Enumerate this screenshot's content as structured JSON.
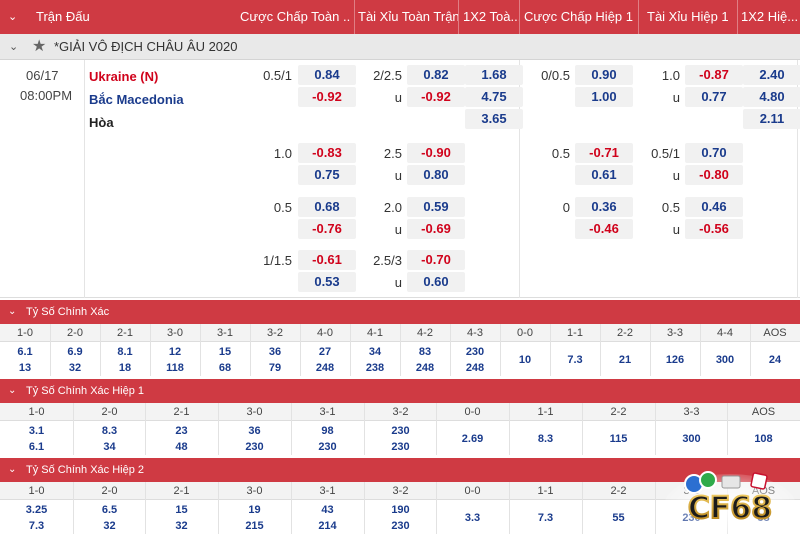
{
  "header": {
    "chevron": "⌄",
    "columns": [
      "Trận Đấu",
      "Cược Chấp Toàn ...",
      "Tài Xỉu Toàn Trận",
      "1X2 Toà...",
      "Cược Chấp Hiệp 1",
      "Tài Xỉu Hiệp 1",
      "1X2 Hiệ..."
    ]
  },
  "league": {
    "chevron": "⌄",
    "title": "*GIẢI VÔ ĐỊCH CHÂU ÂU 2020"
  },
  "match": {
    "date": "06/17",
    "time": "08:00PM",
    "home": "Ukraine (N)",
    "away": "Bắc Macedonia",
    "draw": "Hòa",
    "blocks": [
      {
        "hdp_line": "0.5/1",
        "hdp": [
          "0.84",
          "-0.92"
        ],
        "ou_line": "2/2.5",
        "ou_u": "u",
        "ou": [
          "0.82",
          "-0.92"
        ],
        "x12": [
          "1.68",
          "4.75",
          "3.65"
        ],
        "h1_hdp_line": "0/0.5",
        "h1_hdp": [
          "0.90",
          "1.00"
        ],
        "h1_ou_line": "1.0",
        "h1_ou_u": "u",
        "h1_ou": [
          "-0.87",
          "0.77"
        ],
        "h1_x12": [
          "2.40",
          "4.80",
          "2.11"
        ]
      },
      {
        "hdp_line": "1.0",
        "hdp": [
          "-0.83",
          "0.75"
        ],
        "ou_line": "2.5",
        "ou_u": "u",
        "ou": [
          "-0.90",
          "0.80"
        ],
        "h1_hdp_line": "0.5",
        "h1_hdp": [
          "-0.71",
          "0.61"
        ],
        "h1_ou_line": "0.5/1",
        "h1_ou_u": "u",
        "h1_ou": [
          "0.70",
          "-0.80"
        ]
      },
      {
        "hdp_line": "0.5",
        "hdp": [
          "0.68",
          "-0.76"
        ],
        "ou_line": "2.0",
        "ou_u": "u",
        "ou": [
          "0.59",
          "-0.69"
        ],
        "h1_hdp_line": "0",
        "h1_hdp": [
          "0.36",
          "-0.46"
        ],
        "h1_ou_line": "0.5",
        "h1_ou_u": "u",
        "h1_ou": [
          "0.46",
          "-0.56"
        ]
      },
      {
        "hdp_line": "1/1.5",
        "hdp": [
          "-0.61",
          "0.53"
        ],
        "ou_line": "2.5/3",
        "ou_u": "u",
        "ou": [
          "-0.70",
          "0.60"
        ]
      }
    ]
  },
  "sections": [
    {
      "title": "Tỷ Số Chính Xác",
      "chevron": "⌄",
      "cols": [
        {
          "h": "1-0",
          "v": [
            "6.1",
            "13"
          ]
        },
        {
          "h": "2-0",
          "v": [
            "6.9",
            "32"
          ]
        },
        {
          "h": "2-1",
          "v": [
            "8.1",
            "18"
          ]
        },
        {
          "h": "3-0",
          "v": [
            "12",
            "118"
          ]
        },
        {
          "h": "3-1",
          "v": [
            "15",
            "68"
          ]
        },
        {
          "h": "3-2",
          "v": [
            "36",
            "79"
          ]
        },
        {
          "h": "4-0",
          "v": [
            "27",
            "248"
          ]
        },
        {
          "h": "4-1",
          "v": [
            "34",
            "238"
          ]
        },
        {
          "h": "4-2",
          "v": [
            "83",
            "248"
          ]
        },
        {
          "h": "4-3",
          "v": [
            "230",
            "248"
          ]
        },
        {
          "h": "0-0",
          "v": [
            "10"
          ]
        },
        {
          "h": "1-1",
          "v": [
            "7.3"
          ]
        },
        {
          "h": "2-2",
          "v": [
            "21"
          ]
        },
        {
          "h": "3-3",
          "v": [
            "126"
          ]
        },
        {
          "h": "4-4",
          "v": [
            "300"
          ]
        },
        {
          "h": "AOS",
          "v": [
            "24"
          ]
        }
      ]
    },
    {
      "title": "Tỷ Số Chính Xác Hiệp 1",
      "chevron": "⌄",
      "cols": [
        {
          "h": "1-0",
          "v": [
            "3.1",
            "6.1"
          ]
        },
        {
          "h": "2-0",
          "v": [
            "8.3",
            "34"
          ]
        },
        {
          "h": "2-1",
          "v": [
            "23",
            "48"
          ]
        },
        {
          "h": "3-0",
          "v": [
            "36",
            "230"
          ]
        },
        {
          "h": "3-1",
          "v": [
            "98",
            "230"
          ]
        },
        {
          "h": "3-2",
          "v": [
            "230",
            "230"
          ]
        },
        {
          "h": "0-0",
          "v": [
            "2.69"
          ]
        },
        {
          "h": "1-1",
          "v": [
            "8.3"
          ]
        },
        {
          "h": "2-2",
          "v": [
            "115"
          ]
        },
        {
          "h": "3-3",
          "v": [
            "300"
          ]
        },
        {
          "h": "AOS",
          "v": [
            "108"
          ]
        }
      ]
    },
    {
      "title": "Tỷ Số Chính Xác Hiệp 2",
      "chevron": "⌄",
      "cols": [
        {
          "h": "1-0",
          "v": [
            "3.25",
            "7.3"
          ]
        },
        {
          "h": "2-0",
          "v": [
            "6.5",
            "32"
          ]
        },
        {
          "h": "2-1",
          "v": [
            "15",
            "32"
          ]
        },
        {
          "h": "3-0",
          "v": [
            "19",
            "215"
          ]
        },
        {
          "h": "3-1",
          "v": [
            "43",
            "214"
          ]
        },
        {
          "h": "3-2",
          "v": [
            "190",
            "230"
          ]
        },
        {
          "h": "0-0",
          "v": [
            "3.3"
          ]
        },
        {
          "h": "1-1",
          "v": [
            "7.3"
          ]
        },
        {
          "h": "2-2",
          "v": [
            "55"
          ]
        },
        {
          "h": "3-3",
          "v": [
            "230"
          ]
        },
        {
          "h": "AOS",
          "v": [
            "38"
          ]
        }
      ]
    }
  ],
  "watermark": {
    "text": "CF68",
    "icon": "casino-chips-logo"
  }
}
